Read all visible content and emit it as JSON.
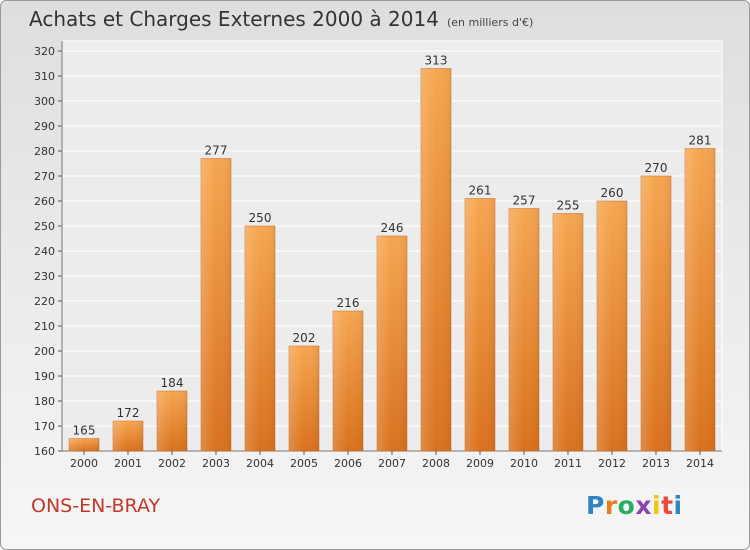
{
  "title": "Achats et Charges Externes 2000 à 2014",
  "unit_note": "(en milliers d'€)",
  "commune": "ONS-EN-BRAY",
  "logo": {
    "letters": [
      "P",
      "r",
      "o",
      "x",
      "i",
      "t",
      "i"
    ],
    "colors": [
      "#2e86c1",
      "#e67e22",
      "#27ae60",
      "#8e44ad",
      "#f1c40f",
      "#e74c3c",
      "#2e86c1"
    ]
  },
  "colors": {
    "bar": "#e8892e",
    "commune_text": "#c0392b"
  },
  "chart_data": {
    "type": "bar",
    "title": "Achats et Charges Externes 2000 à 2014",
    "categories": [
      "2000",
      "2001",
      "2002",
      "2003",
      "2004",
      "2005",
      "2006",
      "2007",
      "2008",
      "2009",
      "2010",
      "2011",
      "2012",
      "2013",
      "2014"
    ],
    "values": [
      165,
      172,
      184,
      277,
      250,
      202,
      216,
      246,
      313,
      261,
      257,
      255,
      260,
      270,
      281
    ],
    "data_labels": [
      "165",
      "172",
      "184",
      "277",
      "250",
      "202",
      "216",
      "246",
      "313",
      "261",
      "257",
      "255",
      "260",
      "270",
      "281"
    ],
    "yticks": [
      "160",
      "170",
      "180",
      "190",
      "200",
      "210",
      "220",
      "230",
      "240",
      "250",
      "260",
      "270",
      "280",
      "290",
      "300",
      "310",
      "320"
    ],
    "ylim": [
      160,
      320
    ],
    "xlabel": "",
    "ylabel": "",
    "grid": true
  }
}
